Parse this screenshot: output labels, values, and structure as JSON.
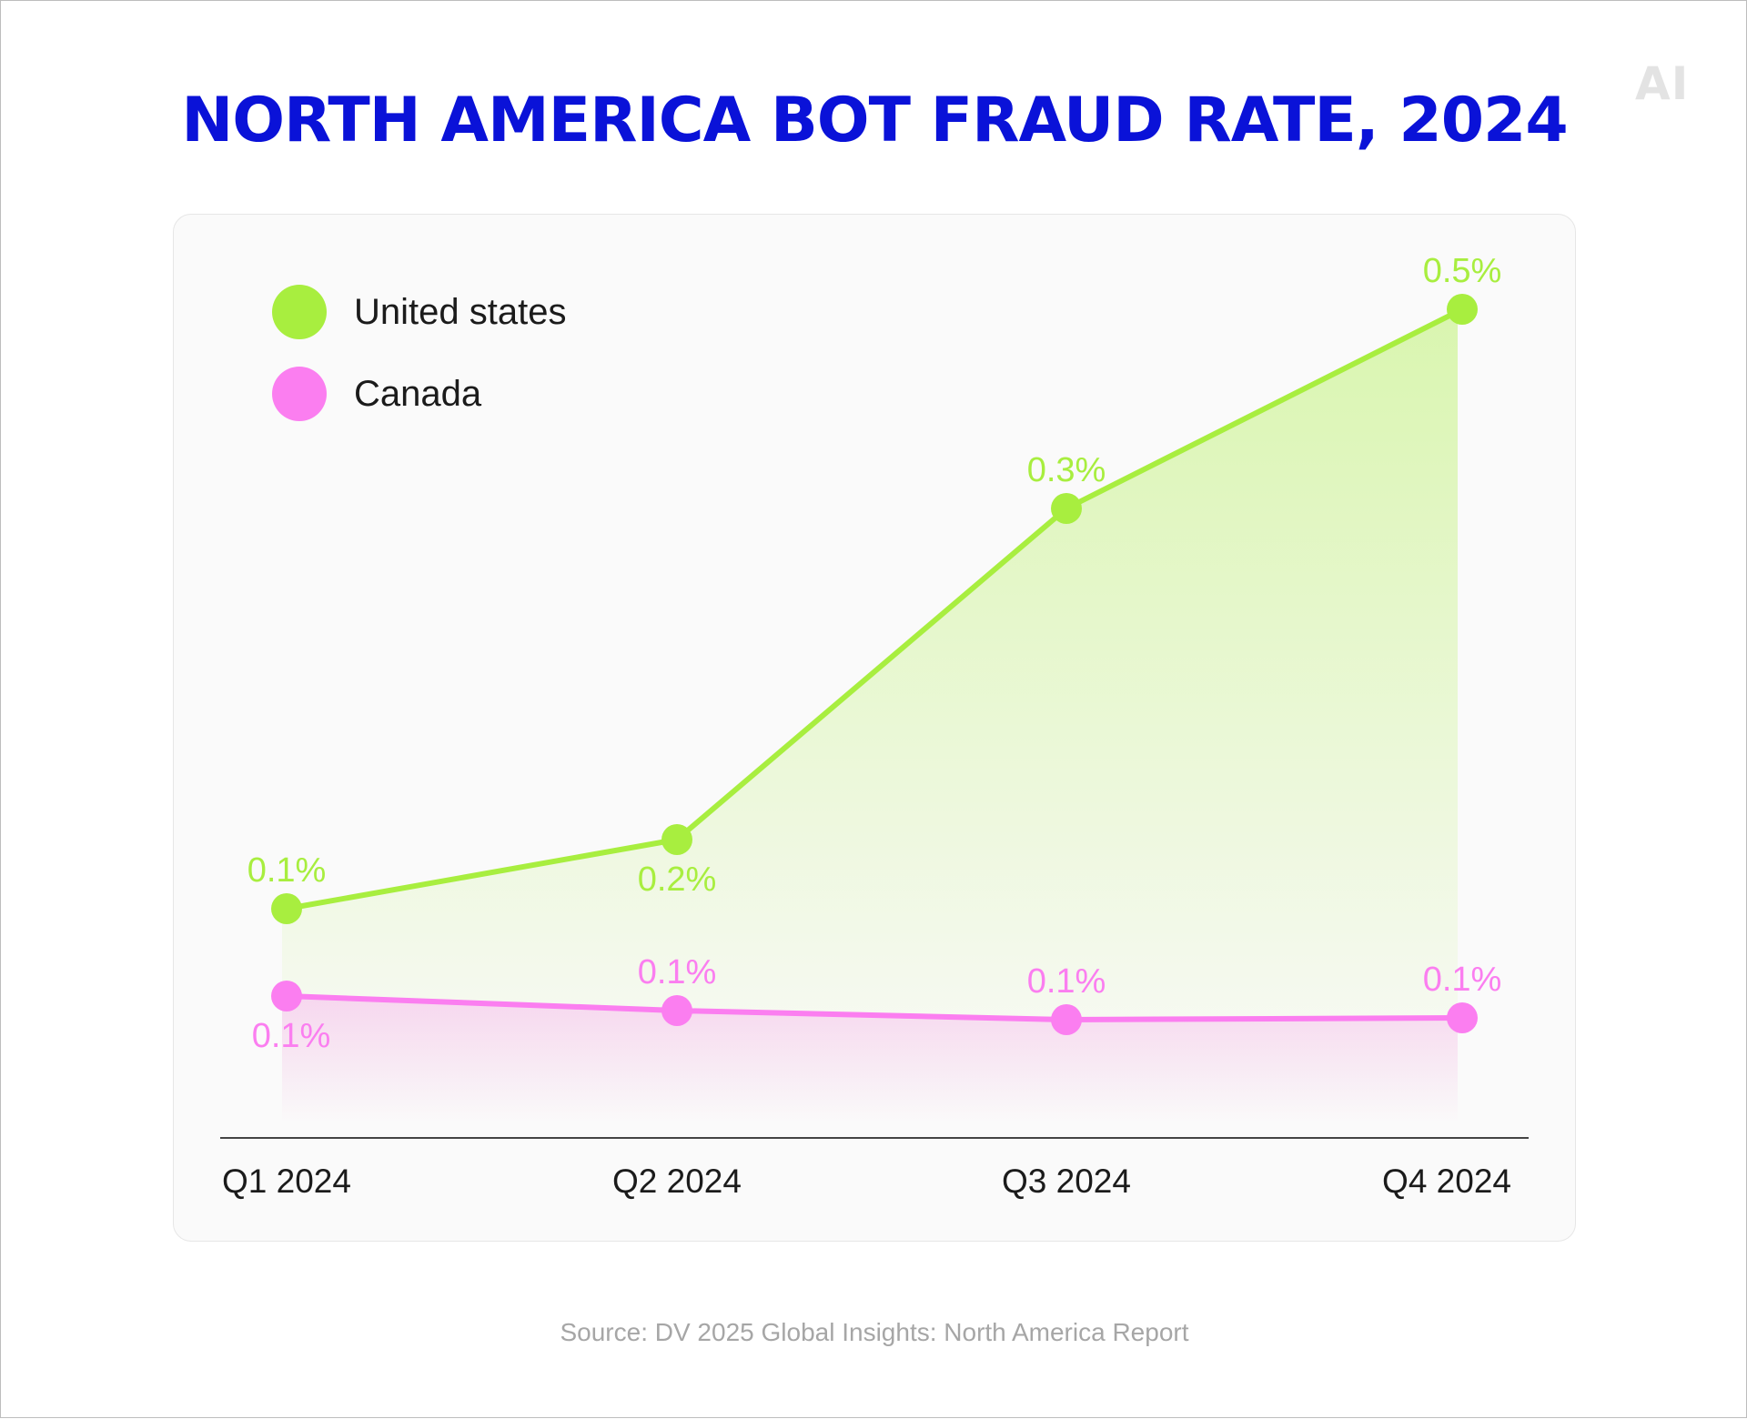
{
  "logo_text": "AI",
  "title": "NORTH AMERICA BOT FRAUD RATE, 2024",
  "source": "Source: DV 2025 Global Insights: North America Report",
  "colors": {
    "title": "#0a12d8",
    "united_states": "#a8ee3f",
    "canada": "#fb7ef0",
    "axis": "#444444",
    "tick_text": "#1b1b1b"
  },
  "chart_data": {
    "type": "line",
    "categories": [
      "Q1 2024",
      "Q2 2024",
      "Q3 2024",
      "Q4 2024"
    ],
    "legend_position": "top-left",
    "grid": false,
    "series": [
      {
        "name": "United states",
        "values": [
          0.1,
          0.2,
          0.3,
          0.5
        ],
        "labels": [
          "0.1%",
          "0.2%",
          "0.3%",
          "0.5%"
        ],
        "label_position": [
          "above",
          "below",
          "above",
          "above"
        ],
        "color": "#a8ee3f",
        "area_fill": true
      },
      {
        "name": "Canada",
        "values": [
          0.1,
          0.1,
          0.1,
          0.1
        ],
        "labels": [
          "0.1%",
          "0.1%",
          "0.1%",
          "0.1%"
        ],
        "label_position": [
          "below",
          "above",
          "above",
          "above"
        ],
        "color": "#fb7ef0",
        "area_fill": true
      }
    ]
  }
}
